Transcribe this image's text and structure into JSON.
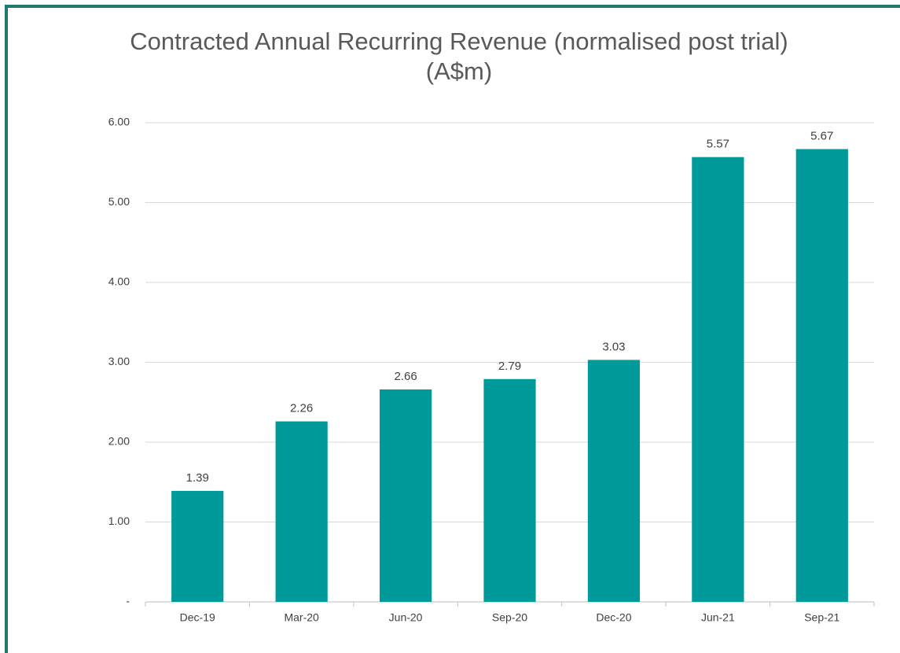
{
  "chart_data": {
    "type": "bar",
    "title": "Contracted Annual Recurring Revenue (normalised post trial) (A$m)",
    "categories": [
      "Dec-19",
      "Mar-20",
      "Jun-20",
      "Sep-20",
      "Dec-20",
      "Jun-21",
      "Sep-21"
    ],
    "values": [
      1.39,
      2.26,
      2.66,
      2.79,
      3.03,
      5.57,
      5.67
    ],
    "value_labels": [
      "1.39",
      "2.26",
      "2.66",
      "2.79",
      "3.03",
      "5.57",
      "5.67"
    ],
    "color": "#009a9a",
    "ylim": [
      0,
      6
    ],
    "yticks": [
      {
        "value": 0,
        "label": "-"
      },
      {
        "value": 1,
        "label": "1.00"
      },
      {
        "value": 2,
        "label": "2.00"
      },
      {
        "value": 3,
        "label": "3.00"
      },
      {
        "value": 4,
        "label": "4.00"
      },
      {
        "value": 5,
        "label": "5.00"
      },
      {
        "value": 6,
        "label": "6.00"
      }
    ],
    "grid": true
  }
}
